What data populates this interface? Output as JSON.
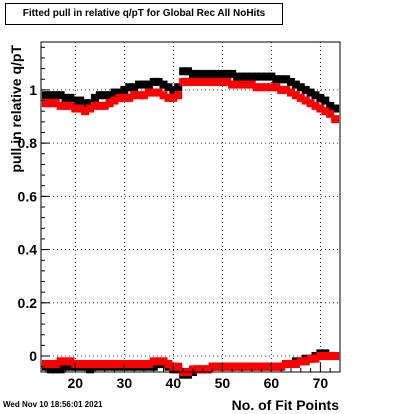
{
  "title": "Fitted pull in relative q/pT for Global Rec All NoHits",
  "footer": "Wed Nov 10 18:56:01 2021",
  "chart_data": {
    "type": "scatter",
    "title": "Fitted pull in relative q/pT for Global Rec All NoHits",
    "xlabel": "No. of Fit Points",
    "ylabel": "pull in relative q/pT",
    "xlim": [
      13,
      74
    ],
    "ylim": [
      -0.06,
      1.18
    ],
    "grid": true,
    "x_ticks": [
      20,
      30,
      40,
      50,
      60,
      70
    ],
    "y_ticks": [
      0,
      0.2,
      0.4,
      0.6,
      0.8,
      1
    ],
    "y_tick_labels": [
      "0",
      "0.2",
      "0.4",
      "0.6",
      "0.8",
      "1"
    ],
    "x_tick_labels": [
      "20",
      "30",
      "40",
      "50",
      "60",
      "70"
    ],
    "x": [
      14,
      15,
      16,
      17,
      18,
      19,
      20,
      21,
      22,
      23,
      24,
      25,
      26,
      27,
      28,
      29,
      30,
      31,
      32,
      33,
      34,
      35,
      36,
      37,
      38,
      39,
      40,
      41,
      42,
      43,
      44,
      45,
      46,
      47,
      48,
      49,
      50,
      51,
      52,
      53,
      54,
      55,
      56,
      57,
      58,
      59,
      60,
      61,
      62,
      63,
      64,
      65,
      66,
      67,
      68,
      69,
      70,
      71,
      72,
      73
    ],
    "series": [
      {
        "color": "#000000",
        "upper": [
          0.98,
          0.98,
          0.98,
          0.98,
          0.97,
          0.97,
          0.96,
          0.96,
          0.95,
          0.95,
          0.97,
          0.98,
          0.98,
          0.98,
          0.99,
          0.99,
          1.0,
          1.01,
          1.01,
          1.02,
          1.02,
          1.02,
          1.03,
          1.03,
          1.02,
          1.01,
          1.0,
          1.01,
          1.07,
          1.07,
          1.06,
          1.06,
          1.06,
          1.06,
          1.06,
          1.06,
          1.06,
          1.06,
          1.06,
          1.05,
          1.05,
          1.05,
          1.05,
          1.05,
          1.05,
          1.05,
          1.05,
          1.04,
          1.04,
          1.04,
          1.03,
          1.02,
          1.01,
          1.0,
          0.99,
          0.98,
          0.97,
          0.96,
          0.94,
          0.93
        ],
        "lower": [
          -0.04,
          -0.05,
          -0.05,
          -0.05,
          -0.04,
          -0.04,
          -0.04,
          -0.04,
          -0.04,
          -0.05,
          -0.04,
          -0.04,
          -0.04,
          -0.04,
          -0.04,
          -0.04,
          -0.04,
          -0.04,
          -0.04,
          -0.04,
          -0.04,
          -0.04,
          -0.04,
          -0.03,
          -0.03,
          -0.04,
          -0.05,
          -0.05,
          -0.07,
          -0.07,
          -0.06,
          -0.05,
          -0.05,
          -0.05,
          -0.04,
          -0.04,
          -0.04,
          -0.04,
          -0.04,
          -0.04,
          -0.04,
          -0.04,
          -0.04,
          -0.04,
          -0.04,
          -0.04,
          -0.04,
          -0.04,
          -0.04,
          -0.03,
          -0.03,
          -0.02,
          -0.02,
          -0.01,
          -0.01,
          0.0,
          0.01,
          0.01,
          0.0,
          0.0
        ]
      },
      {
        "color": "#ff0000",
        "upper": [
          0.95,
          0.95,
          0.95,
          0.94,
          0.94,
          0.94,
          0.93,
          0.93,
          0.92,
          0.93,
          0.94,
          0.94,
          0.94,
          0.95,
          0.96,
          0.97,
          0.97,
          0.97,
          0.98,
          0.98,
          0.98,
          0.99,
          0.99,
          0.99,
          0.98,
          0.97,
          0.97,
          0.98,
          1.03,
          1.03,
          1.03,
          1.03,
          1.03,
          1.03,
          1.03,
          1.03,
          1.03,
          1.03,
          1.02,
          1.02,
          1.02,
          1.02,
          1.02,
          1.01,
          1.01,
          1.01,
          1.01,
          1.01,
          1.0,
          1.0,
          0.99,
          0.98,
          0.97,
          0.96,
          0.95,
          0.94,
          0.93,
          0.92,
          0.91,
          0.89
        ],
        "lower": [
          -0.03,
          -0.03,
          -0.03,
          -0.02,
          -0.02,
          -0.02,
          -0.03,
          -0.03,
          -0.03,
          -0.03,
          -0.03,
          -0.03,
          -0.03,
          -0.03,
          -0.03,
          -0.03,
          -0.03,
          -0.03,
          -0.03,
          -0.03,
          -0.03,
          -0.03,
          -0.02,
          -0.02,
          -0.02,
          -0.03,
          -0.04,
          -0.04,
          -0.06,
          -0.06,
          -0.05,
          -0.05,
          -0.05,
          -0.05,
          -0.04,
          -0.04,
          -0.04,
          -0.04,
          -0.04,
          -0.04,
          -0.04,
          -0.04,
          -0.04,
          -0.04,
          -0.04,
          -0.04,
          -0.04,
          -0.04,
          -0.04,
          -0.03,
          -0.03,
          -0.03,
          -0.02,
          -0.02,
          -0.01,
          -0.01,
          0.0,
          0.0,
          0.0,
          0.0
        ]
      }
    ]
  }
}
